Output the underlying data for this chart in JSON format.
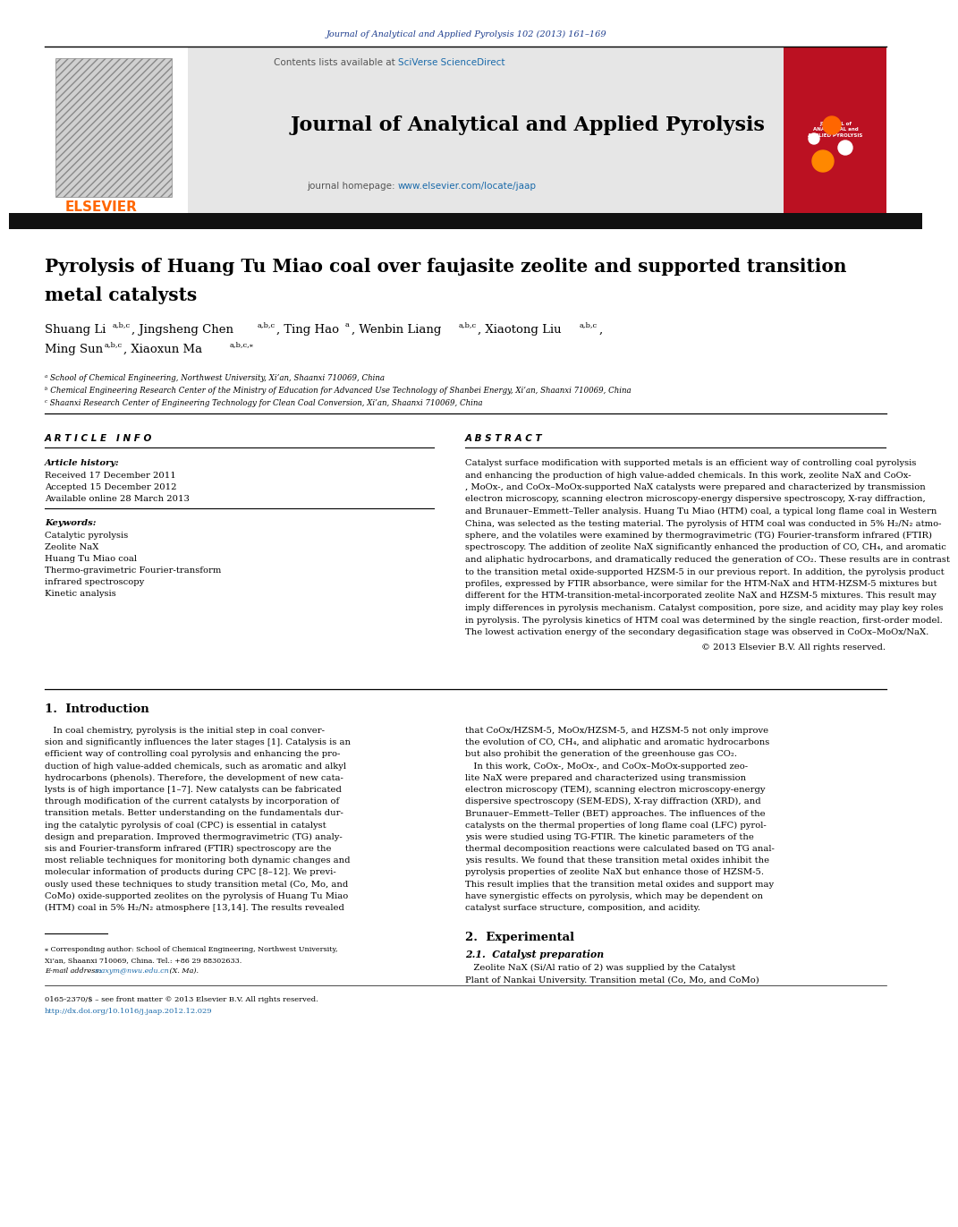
{
  "page_width": 10.21,
  "page_height": 13.51,
  "bg_color": "#ffffff",
  "header_bg_color": "#e6e6e6",
  "dark_bar_color": "#111111",
  "journal_ref_text": "Journal of Analytical and Applied Pyrolysis 102 (2013) 161–169",
  "journal_ref_color": "#1a3a8c",
  "contents_text": "Contents lists available at ",
  "sciverse_text": "SciVerse ScienceDirect",
  "sciverse_color": "#1a6aaa",
  "journal_name": "Journal of Analytical and Applied Pyrolysis",
  "homepage_text": "journal homepage: ",
  "homepage_url": "www.elsevier.com/locate/jaap",
  "homepage_url_color": "#1a6aaa",
  "elsevier_color": "#ff6600",
  "article_title_line1": "Pyrolysis of Huang Tu Miao coal over faujasite zeolite and supported transition",
  "article_title_line2": "metal catalysts",
  "author_line1": "Shuang Li",
  "author_sup1": "a,b,c",
  "author2": ", Jingsheng Chen",
  "author_sup2": "a,b,c",
  "author3": ", Ting Hao",
  "author_sup3": "a",
  "author4": ", Wenbin Liang",
  "author_sup4": "a,b,c",
  "author5": ", Xiaotong Liu",
  "author_sup5": "a,b,c",
  "author6": ",",
  "author_line2": "Ming Sun",
  "author_sup6": "a,b,c",
  "author7": ", Xiaoxun Ma",
  "author_sup7": "a,b,c,⁎",
  "affil_a": "ᵃ School of Chemical Engineering, Northwest University, Xi’an, Shaanxi 710069, China",
  "affil_b": "ᵇ Chemical Engineering Research Center of the Ministry of Education for Advanced Use Technology of Shanbei Energy, Xi’an, Shaanxi 710069, China",
  "affil_c": "ᶜ Shaanxi Research Center of Engineering Technology for Clean Coal Conversion, Xi’an, Shaanxi 710069, China",
  "article_info_title": "A R T I C L E   I N F O",
  "abstract_title": "A B S T R A C T",
  "article_history_label": "Article history:",
  "received": "Received 17 December 2011",
  "accepted": "Accepted 15 December 2012",
  "available": "Available online 28 March 2013",
  "keywords_label": "Keywords:",
  "keywords": [
    "Catalytic pyrolysis",
    "Zeolite NaX",
    "Huang Tu Miao coal",
    "Thermo-gravimetric Fourier-transform\ninfrared spectroscopy",
    "Kinetic analysis"
  ],
  "abstract_lines": [
    "Catalyst surface modification with supported metals is an efficient way of controlling coal pyrolysis",
    "and enhancing the production of high value-added chemicals. In this work, zeolite NaX and CoOx-",
    ", MoOx-, and CoOx–MoOx-supported NaX catalysts were prepared and characterized by transmission",
    "electron microscopy, scanning electron microscopy-energy dispersive spectroscopy, X-ray diffraction,",
    "and Brunauer–Emmett–Teller analysis. Huang Tu Miao (HTM) coal, a typical long flame coal in Western",
    "China, was selected as the testing material. The pyrolysis of HTM coal was conducted in 5% H₂/N₂ atmo-",
    "sphere, and the volatiles were examined by thermogravimetric (TG) Fourier-transform infrared (FTIR)",
    "spectroscopy. The addition of zeolite NaX significantly enhanced the production of CO, CH₄, and aromatic",
    "and aliphatic hydrocarbons, and dramatically reduced the generation of CO₂. These results are in contrast",
    "to the transition metal oxide-supported HZSM-5 in our previous report. In addition, the pyrolysis product",
    "profiles, expressed by FTIR absorbance, were similar for the HTM-NaX and HTM-HZSM-5 mixtures but",
    "different for the HTM-transition-metal-incorporated zeolite NaX and HZSM-5 mixtures. This result may",
    "imply differences in pyrolysis mechanism. Catalyst composition, pore size, and acidity may play key roles",
    "in pyrolysis. The pyrolysis kinetics of HTM coal was determined by the single reaction, first-order model.",
    "The lowest activation energy of the secondary degasification stage was observed in CoOx–MoOx/NaX."
  ],
  "copyright_text": "© 2013 Elsevier B.V. All rights reserved.",
  "intro_title": "1.  Introduction",
  "intro_col1_lines": [
    "   In coal chemistry, pyrolysis is the initial step in coal conver-",
    "sion and significantly influences the later stages [1]. Catalysis is an",
    "efficient way of controlling coal pyrolysis and enhancing the pro-",
    "duction of high value-added chemicals, such as aromatic and alkyl",
    "hydrocarbons (phenols). Therefore, the development of new cata-",
    "lysts is of high importance [1–7]. New catalysts can be fabricated",
    "through modification of the current catalysts by incorporation of",
    "transition metals. Better understanding on the fundamentals dur-",
    "ing the catalytic pyrolysis of coal (CPC) is essential in catalyst",
    "design and preparation. Improved thermogravimetric (TG) analy-",
    "sis and Fourier-transform infrared (FTIR) spectroscopy are the",
    "most reliable techniques for monitoring both dynamic changes and",
    "molecular information of products during CPC [8–12]. We previ-",
    "ously used these techniques to study transition metal (Co, Mo, and",
    "CoMo) oxide-supported zeolites on the pyrolysis of Huang Tu Miao",
    "(HTM) coal in 5% H₂/N₂ atmosphere [13,14]. The results revealed"
  ],
  "intro_col2_lines": [
    "that CoOx/HZSM-5, MoOx/HZSM-5, and HZSM-5 not only improve",
    "the evolution of CO, CH₄, and aliphatic and aromatic hydrocarbons",
    "but also prohibit the generation of the greenhouse gas CO₂.",
    "   In this work, CoOx-, MoOx-, and CoOx–MoOx-supported zeo-",
    "lite NaX were prepared and characterized using transmission",
    "electron microscopy (TEM), scanning electron microscopy-energy",
    "dispersive spectroscopy (SEM-EDS), X-ray diffraction (XRD), and",
    "Brunauer–Emmett–Teller (BET) approaches. The influences of the",
    "catalysts on the thermal properties of long flame coal (LFC) pyrol-",
    "ysis were studied using TG-FTIR. The kinetic parameters of the",
    "thermal decomposition reactions were calculated based on TG anal-",
    "ysis results. We found that these transition metal oxides inhibit the",
    "pyrolysis properties of zeolite NaX but enhance those of HZSM-5.",
    "This result implies that the transition metal oxides and support may",
    "have synergistic effects on pyrolysis, which may be dependent on",
    "catalyst surface structure, composition, and acidity."
  ],
  "exp_title": "2.  Experimental",
  "cat_prep_title": "2.1.  Catalyst preparation",
  "cat_prep_lines": [
    "   Zeolite NaX (Si/Al ratio of 2) was supplied by the Catalyst",
    "Plant of Nankai University. Transition metal (Co, Mo, and CoMo)"
  ],
  "footer_star": "⁎ Corresponding author: School of Chemical Engineering, Northwest University,",
  "footer_star2": "Xi’an, Shaanxi 710069, China. Tel.: +86 29 88302633.",
  "footer_email_label": "E-mail address: ",
  "footer_email": "maxym@nwu.edu.cn",
  "footer_email2": " (X. Ma).",
  "footer_issn": "0165-2370/$ – see front matter © 2013 Elsevier B.V. All rights reserved.",
  "footer_doi": "http://dx.doi.org/10.1016/j.jaap.2012.12.029",
  "footer_doi_color": "#1a6aaa"
}
